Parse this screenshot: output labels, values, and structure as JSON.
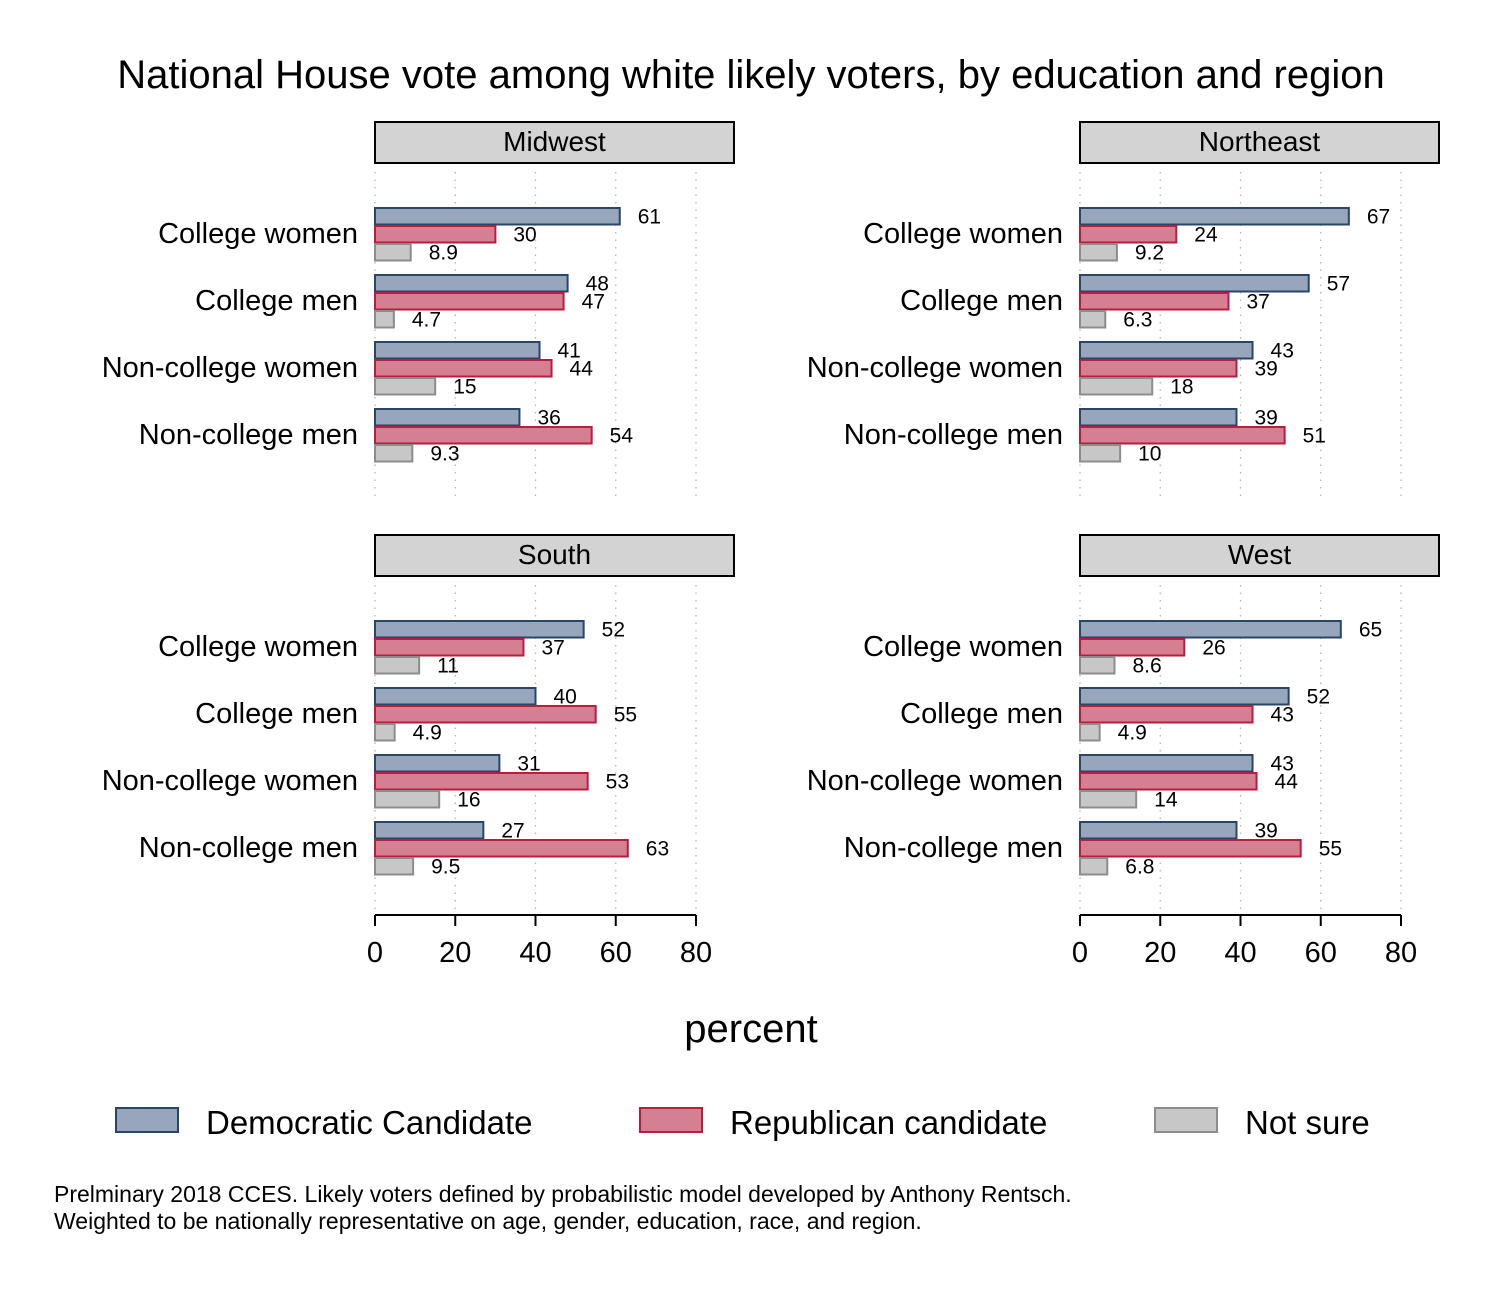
{
  "chart_data": {
    "type": "bar",
    "orientation": "horizontal",
    "title": "National House vote among white likely voters, by education and region",
    "xlabel": "percent",
    "xlim": [
      0,
      80
    ],
    "xticks": [
      0,
      20,
      40,
      60,
      80
    ],
    "grid": "vertical dotted",
    "legend_position": "bottom",
    "categories": [
      "College women",
      "College men",
      "Non-college women",
      "Non-college men"
    ],
    "series_meta": [
      {
        "name": "Democratic Candidate",
        "fill": "#97a6bb",
        "stroke": "#27466a"
      },
      {
        "name": "Republican candidate",
        "fill": "#d57f93",
        "stroke": "#b81e3b"
      },
      {
        "name": "Not sure",
        "fill": "#c7c7c7",
        "stroke": "#8c8c8c"
      }
    ],
    "panels": [
      {
        "name": "Midwest",
        "values": [
          [
            61,
            30,
            8.9
          ],
          [
            48,
            47,
            4.7
          ],
          [
            41,
            44,
            15
          ],
          [
            36,
            54,
            9.3
          ]
        ]
      },
      {
        "name": "Northeast",
        "values": [
          [
            67,
            24,
            9.2
          ],
          [
            57,
            37,
            6.3
          ],
          [
            43,
            39,
            18
          ],
          [
            39,
            51,
            10
          ]
        ]
      },
      {
        "name": "South",
        "values": [
          [
            52,
            37,
            11
          ],
          [
            40,
            55,
            4.9
          ],
          [
            31,
            53,
            16
          ],
          [
            27,
            63,
            9.5
          ]
        ]
      },
      {
        "name": "West",
        "values": [
          [
            65,
            26,
            8.6
          ],
          [
            52,
            43,
            4.9
          ],
          [
            43,
            44,
            14
          ],
          [
            39,
            55,
            6.8
          ]
        ]
      }
    ],
    "value_labels": [
      [
        [
          "61",
          "30",
          "8.9"
        ],
        [
          "48",
          "47",
          "4.7"
        ],
        [
          "41",
          "44",
          "15"
        ],
        [
          "36",
          "54",
          "9.3"
        ]
      ],
      [
        [
          "67",
          "24",
          "9.2"
        ],
        [
          "57",
          "37",
          "6.3"
        ],
        [
          "43",
          "39",
          "18"
        ],
        [
          "39",
          "51",
          "10"
        ]
      ],
      [
        [
          "52",
          "37",
          "11"
        ],
        [
          "40",
          "55",
          "4.9"
        ],
        [
          "31",
          "53",
          "16"
        ],
        [
          "27",
          "63",
          "9.5"
        ]
      ],
      [
        [
          "65",
          "26",
          "8.6"
        ],
        [
          "52",
          "43",
          "4.9"
        ],
        [
          "43",
          "44",
          "14"
        ],
        [
          "39",
          "55",
          "6.8"
        ]
      ]
    ]
  },
  "footnote": {
    "line1": "Prelminary 2018 CCES. Likely voters defined by probabilistic model developed by Anthony Rentsch.",
    "line2": "Weighted to be nationally representative on age, gender, education, race, and region."
  }
}
